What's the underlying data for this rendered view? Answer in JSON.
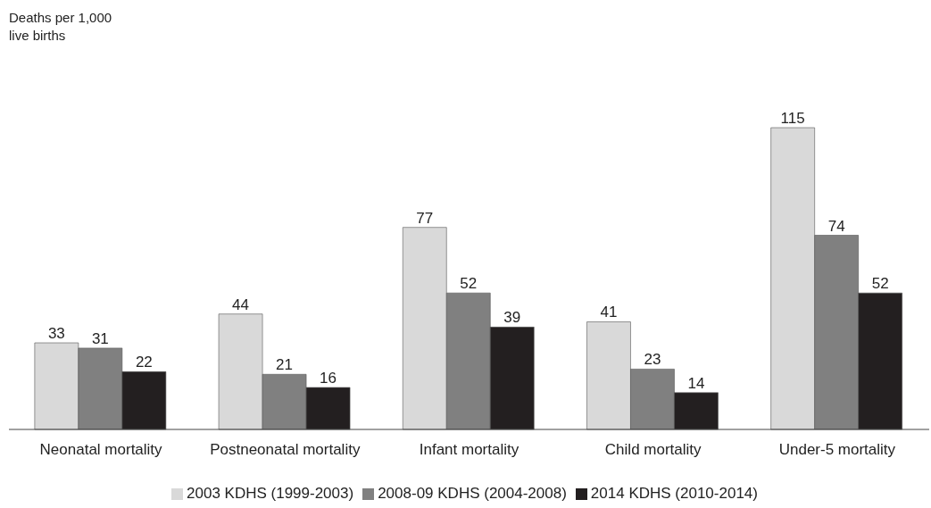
{
  "chart_data": {
    "type": "bar",
    "annotations": [
      "Deaths per 1,000 live births"
    ],
    "categories": [
      "Neonatal mortality",
      "Postneonatal mortality",
      "Infant mortality",
      "Child mortality",
      "Under-5 mortality"
    ],
    "series": [
      {
        "name": "2003 KDHS (1999-2003)",
        "color": "#d9d9d9",
        "values": [
          33,
          44,
          77,
          41,
          115
        ]
      },
      {
        "name": "2008-09 KDHS (2004-2008)",
        "color": "#808080",
        "values": [
          31,
          21,
          52,
          23,
          74
        ]
      },
      {
        "name": "2014 KDHS (2010-2014)",
        "color": "#231f20",
        "values": [
          22,
          16,
          39,
          14,
          52
        ]
      }
    ],
    "data_labels": true,
    "legend": "bottom"
  }
}
